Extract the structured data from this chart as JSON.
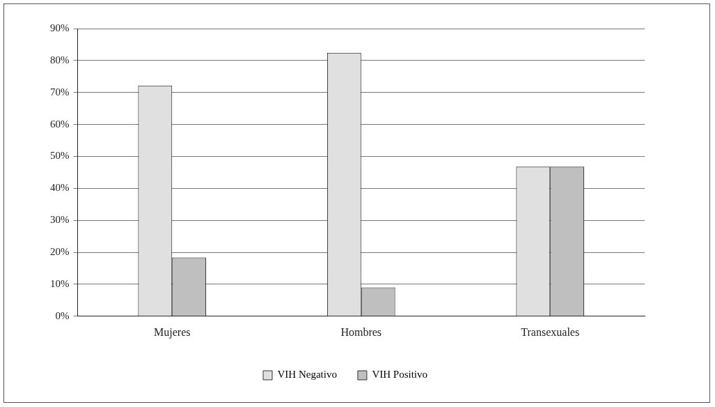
{
  "chart_data": {
    "type": "bar",
    "categories": [
      "Mujeres",
      "Hombres",
      "Transexuales"
    ],
    "series": [
      {
        "name": "VIH Negativo",
        "color": "#e0e0e0",
        "values": [
          72.2,
          82.4,
          46.8
        ]
      },
      {
        "name": "VIH Positivo",
        "color": "#bfbfbf",
        "values": [
          18.4,
          9.0,
          46.8
        ]
      }
    ],
    "ylim": [
      0,
      90
    ],
    "yticks": [
      {
        "value": 0,
        "label": "0%"
      },
      {
        "value": 10,
        "label": "10%"
      },
      {
        "value": 20,
        "label": "20%"
      },
      {
        "value": 30,
        "label": "30%"
      },
      {
        "value": 40,
        "label": "40%"
      },
      {
        "value": 50,
        "label": "50%"
      },
      {
        "value": 60,
        "label": "60%"
      },
      {
        "value": 70,
        "label": "70%"
      },
      {
        "value": 80,
        "label": "80%"
      },
      {
        "value": 90,
        "label": "90%"
      }
    ],
    "grid": "y",
    "legend": "bottom"
  }
}
